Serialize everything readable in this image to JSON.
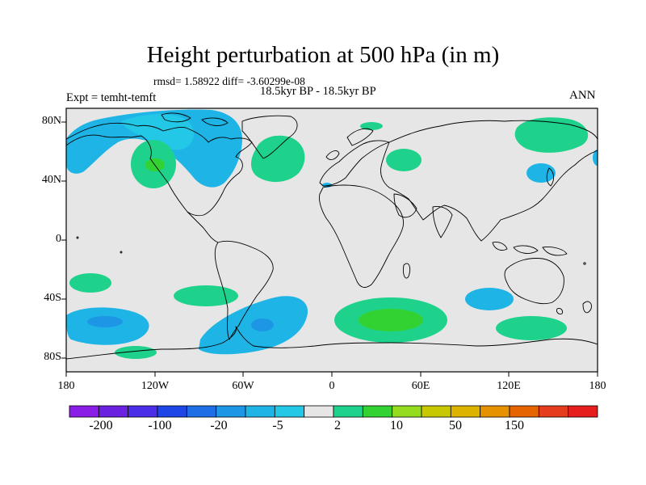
{
  "header": {
    "title": "Height perturbation at 500 hPa (in m)",
    "stats": "rmsd= 1.58922 diff= -3.60299e-08",
    "left_label": "Expt = temht-temft",
    "center_label": "18.5kyr BP - 18.5kyr BP",
    "right_label": "ANN"
  },
  "map": {
    "projection": "cylindrical equidistant",
    "lon_range": [
      -180,
      180
    ],
    "lat_range": [
      -90,
      90
    ],
    "ocean_background": "#e6e6e6",
    "coastline_color": "#000000",
    "x_tick_labels": [
      "180",
      "120W",
      "60W",
      "0",
      "60E",
      "120E",
      "180"
    ],
    "y_tick_labels": [
      "80N",
      "40N",
      "0",
      "40S",
      "80S"
    ]
  },
  "colorbar": {
    "colors": [
      "#8a1ee6",
      "#6a22e0",
      "#4a2ee8",
      "#1e46e6",
      "#1e6ee6",
      "#1e96e6",
      "#1eb4e6",
      "#23c8e6",
      "#e6e6e6",
      "#1ed28c",
      "#32d232",
      "#96dc1e",
      "#c8c800",
      "#dcb400",
      "#e69100",
      "#e66400",
      "#e63c1e",
      "#e61e1e"
    ],
    "labels": [
      "-200",
      "-100",
      "-20",
      "-5",
      "2",
      "10",
      "50",
      "150"
    ]
  }
}
